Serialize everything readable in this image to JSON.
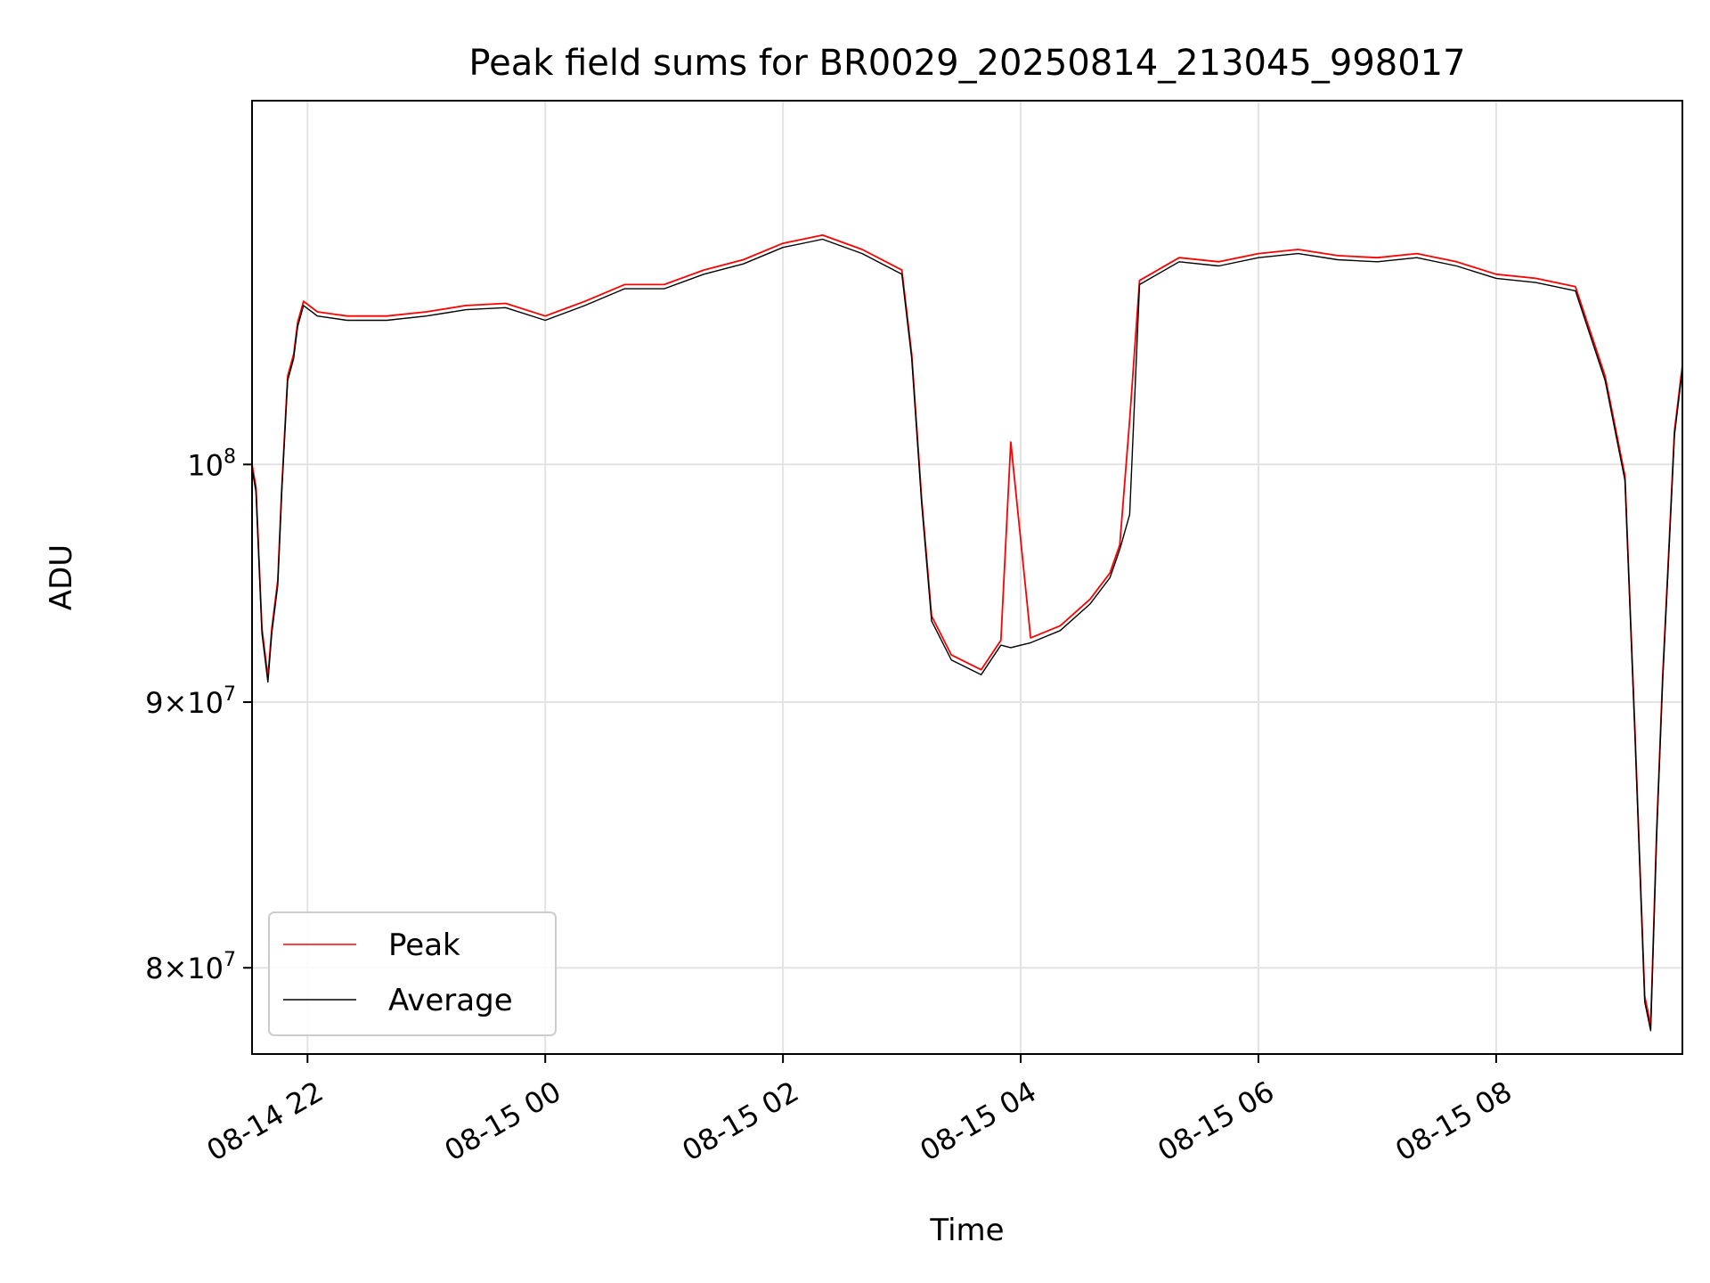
{
  "chart_data": {
    "type": "line",
    "title": "Peak field sums for BR0029_20250814_213045_998017",
    "xlabel": "Time",
    "ylabel": "ADU",
    "x_axis": {
      "kind": "datetime",
      "range": [
        "2025-08-14 21:32",
        "2025-08-15 09:34"
      ],
      "ticks": [
        {
          "value": "2025-08-14 22:00",
          "label": "08-14 22"
        },
        {
          "value": "2025-08-15 00:00",
          "label": "08-15 00"
        },
        {
          "value": "2025-08-15 02:00",
          "label": "08-15 02"
        },
        {
          "value": "2025-08-15 04:00",
          "label": "08-15 04"
        },
        {
          "value": "2025-08-15 06:00",
          "label": "08-15 06"
        },
        {
          "value": "2025-08-15 08:00",
          "label": "08-15 08"
        }
      ]
    },
    "y_axis": {
      "scale": "log",
      "range": [
        77000000,
        117500000
      ],
      "ticks": [
        {
          "value": 80000000,
          "mantissa": "8",
          "base": "10",
          "exp": "7"
        },
        {
          "value": 90000000,
          "mantissa": "9",
          "base": "10",
          "exp": "7"
        },
        {
          "value": 100000000,
          "mantissa": "",
          "base": "10",
          "exp": "8"
        }
      ]
    },
    "grid": true,
    "legend": {
      "position": "lower-left"
    },
    "colors": {
      "peak": "#ff0000",
      "average": "#000000"
    },
    "series": [
      {
        "name": "Peak",
        "color": "#ff0000",
        "x": [
          "2025-08-14 21:32",
          "2025-08-14 21:34",
          "2025-08-14 21:37",
          "2025-08-14 21:40",
          "2025-08-14 21:42",
          "2025-08-14 21:45",
          "2025-08-14 21:47",
          "2025-08-14 21:50",
          "2025-08-14 21:53",
          "2025-08-14 21:55",
          "2025-08-14 21:58",
          "2025-08-14 22:05",
          "2025-08-14 22:20",
          "2025-08-14 22:40",
          "2025-08-14 23:00",
          "2025-08-14 23:20",
          "2025-08-14 23:40",
          "2025-08-15 00:00",
          "2025-08-15 00:20",
          "2025-08-15 00:40",
          "2025-08-15 01:00",
          "2025-08-15 01:20",
          "2025-08-15 01:40",
          "2025-08-15 02:00",
          "2025-08-15 02:20",
          "2025-08-15 02:40",
          "2025-08-15 03:00",
          "2025-08-15 03:05",
          "2025-08-15 03:10",
          "2025-08-15 03:15",
          "2025-08-15 03:25",
          "2025-08-15 03:40",
          "2025-08-15 03:50",
          "2025-08-15 03:55",
          "2025-08-15 04:05",
          "2025-08-15 04:20",
          "2025-08-15 04:35",
          "2025-08-15 04:45",
          "2025-08-15 04:50",
          "2025-08-15 04:55",
          "2025-08-15 05:00",
          "2025-08-15 05:20",
          "2025-08-15 05:40",
          "2025-08-15 06:00",
          "2025-08-15 06:20",
          "2025-08-15 06:40",
          "2025-08-15 07:00",
          "2025-08-15 07:20",
          "2025-08-15 07:40",
          "2025-08-15 08:00",
          "2025-08-15 08:20",
          "2025-08-15 08:40",
          "2025-08-15 08:55",
          "2025-08-15 09:05",
          "2025-08-15 09:10",
          "2025-08-15 09:15",
          "2025-08-15 09:18",
          "2025-08-15 09:21",
          "2025-08-15 09:24",
          "2025-08-15 09:27",
          "2025-08-15 09:30",
          "2025-08-15 09:34"
        ],
        "values": [
          100000000,
          99000000,
          93000000,
          91000000,
          93000000,
          95000000,
          99000000,
          104000000,
          105000000,
          106500000,
          107500000,
          107000000,
          106800000,
          106800000,
          107000000,
          107300000,
          107400000,
          106800000,
          107500000,
          108300000,
          108300000,
          109000000,
          109500000,
          110300000,
          110700000,
          110000000,
          109000000,
          105000000,
          98500000,
          93500000,
          91900000,
          91300000,
          92500000,
          101000000,
          92600000,
          93100000,
          94200000,
          95300000,
          96500000,
          102000000,
          108500000,
          109600000,
          109400000,
          109800000,
          110000000,
          109700000,
          109600000,
          109800000,
          109400000,
          108800000,
          108600000,
          108200000,
          104000000,
          99500000,
          89000000,
          79000000,
          78000000,
          85000000,
          91000000,
          96000000,
          101500000,
          104500000
        ]
      },
      {
        "name": "Average",
        "color": "#000000",
        "x": [
          "2025-08-14 21:32",
          "2025-08-14 21:34",
          "2025-08-14 21:37",
          "2025-08-14 21:40",
          "2025-08-14 21:42",
          "2025-08-14 21:45",
          "2025-08-14 21:47",
          "2025-08-14 21:50",
          "2025-08-14 21:53",
          "2025-08-14 21:55",
          "2025-08-14 21:58",
          "2025-08-14 22:05",
          "2025-08-14 22:20",
          "2025-08-14 22:40",
          "2025-08-14 23:00",
          "2025-08-14 23:20",
          "2025-08-14 23:40",
          "2025-08-15 00:00",
          "2025-08-15 00:20",
          "2025-08-15 00:40",
          "2025-08-15 01:00",
          "2025-08-15 01:20",
          "2025-08-15 01:40",
          "2025-08-15 02:00",
          "2025-08-15 02:20",
          "2025-08-15 02:40",
          "2025-08-15 03:00",
          "2025-08-15 03:05",
          "2025-08-15 03:10",
          "2025-08-15 03:15",
          "2025-08-15 03:25",
          "2025-08-15 03:40",
          "2025-08-15 03:50",
          "2025-08-15 03:55",
          "2025-08-15 04:05",
          "2025-08-15 04:20",
          "2025-08-15 04:35",
          "2025-08-15 04:45",
          "2025-08-15 04:50",
          "2025-08-15 04:55",
          "2025-08-15 05:00",
          "2025-08-15 05:20",
          "2025-08-15 05:40",
          "2025-08-15 06:00",
          "2025-08-15 06:20",
          "2025-08-15 06:40",
          "2025-08-15 07:00",
          "2025-08-15 07:20",
          "2025-08-15 07:40",
          "2025-08-15 08:00",
          "2025-08-15 08:20",
          "2025-08-15 08:40",
          "2025-08-15 08:55",
          "2025-08-15 09:05",
          "2025-08-15 09:10",
          "2025-08-15 09:15",
          "2025-08-15 09:18",
          "2025-08-15 09:21",
          "2025-08-15 09:24",
          "2025-08-15 09:27",
          "2025-08-15 09:30",
          "2025-08-15 09:34"
        ],
        "values": [
          99800000,
          98800000,
          92800000,
          90800000,
          92800000,
          94800000,
          98800000,
          103800000,
          104800000,
          106300000,
          107300000,
          106800000,
          106600000,
          106600000,
          106800000,
          107100000,
          107200000,
          106600000,
          107300000,
          108100000,
          108100000,
          108800000,
          109300000,
          110100000,
          110500000,
          109800000,
          108800000,
          104800000,
          98300000,
          93300000,
          91700000,
          91100000,
          92300000,
          92200000,
          92400000,
          92900000,
          94000000,
          95100000,
          96300000,
          97800000,
          108300000,
          109400000,
          109200000,
          109600000,
          109800000,
          109500000,
          109400000,
          109600000,
          109200000,
          108600000,
          108400000,
          108000000,
          103800000,
          99300000,
          88800000,
          78800000,
          77800000,
          84800000,
          90800000,
          95800000,
          101300000,
          104300000
        ]
      }
    ]
  }
}
